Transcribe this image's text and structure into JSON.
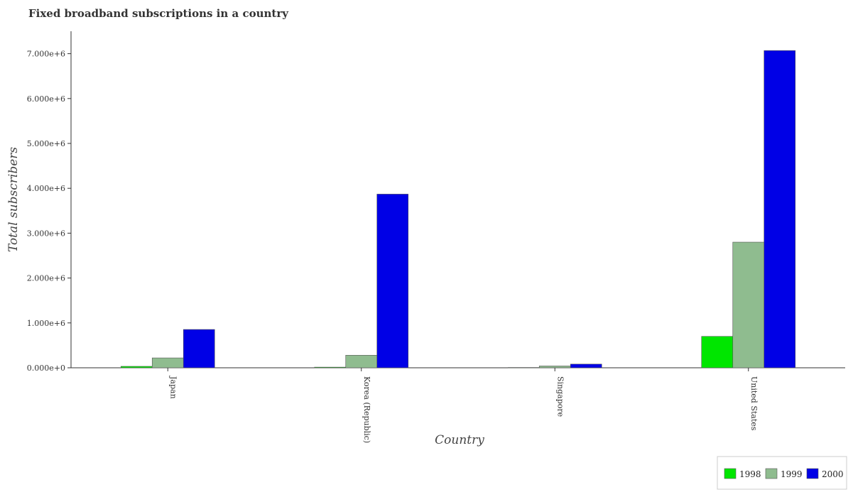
{
  "chart_data": {
    "type": "bar",
    "title": "Fixed broadband subscriptions in a country",
    "xlabel": "Country",
    "ylabel": "Total subscribers",
    "categories": [
      "Japan",
      "Korea (Republic)",
      "Singapore",
      "United States"
    ],
    "series": [
      {
        "name": "1998",
        "color": "#00e600",
        "values": [
          32000,
          14000,
          7000,
          700000
        ]
      },
      {
        "name": "1999",
        "color": "#8fbc8f",
        "values": [
          220000,
          280000,
          40000,
          2800000
        ]
      },
      {
        "name": "2000",
        "color": "#0000e6",
        "values": [
          854000,
          3870000,
          82000,
          7070000
        ]
      }
    ],
    "ylim": [
      0,
      7500000
    ],
    "yticks": [
      0,
      1000000,
      2000000,
      3000000,
      4000000,
      5000000,
      6000000,
      7000000
    ],
    "ytick_labels": [
      "0.000e+0",
      "1.000e+6",
      "2.000e+6",
      "3.000e+6",
      "4.000e+6",
      "5.000e+6",
      "6.000e+6",
      "7.000e+6"
    ],
    "grid": false,
    "legend_position": "bottom-right"
  }
}
